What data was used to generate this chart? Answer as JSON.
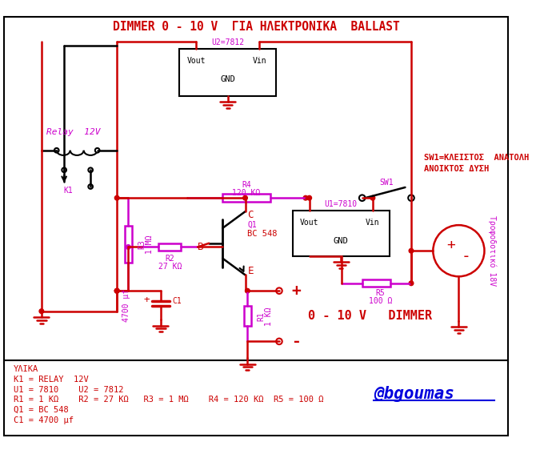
{
  "title": "DIMMER 0 - 10 V  ΓΙΑ ΗΛΕΚΤΡΟΝΙΚΑ  BALLAST",
  "title_color": "#cc0000",
  "bg_color": "#ffffff",
  "circuit_color": "#cc0000",
  "magenta_color": "#cc00cc",
  "blue_color": "#0000dd",
  "materials_text": [
    "ΥΛΙΚΑ",
    "K1 = RELAY  12V",
    "U1 = 7810    U2 = 7812",
    "R1 = 1 KΩ    R2 = 27 KΩ   R3 = 1 MΩ    R4 = 120 KΩ  R5 = 100 Ω",
    "Q1 = BC 548",
    "C1 = 4700 μf"
  ],
  "watermark": "@bgoumas",
  "sw1_label_line1": "SW1=ΚΛΕΙΣΤΟΣ  ΑΝΑΤΟΛΗ",
  "sw1_label_line2": "ΑΝΟΙΚΤΟΣ ΔΥΣΗ",
  "dimmer_label": "0 - 10 V   DIMMER",
  "relay_label": "Relay  12V",
  "trofo_label": "Τροφοδοτικό 18V"
}
